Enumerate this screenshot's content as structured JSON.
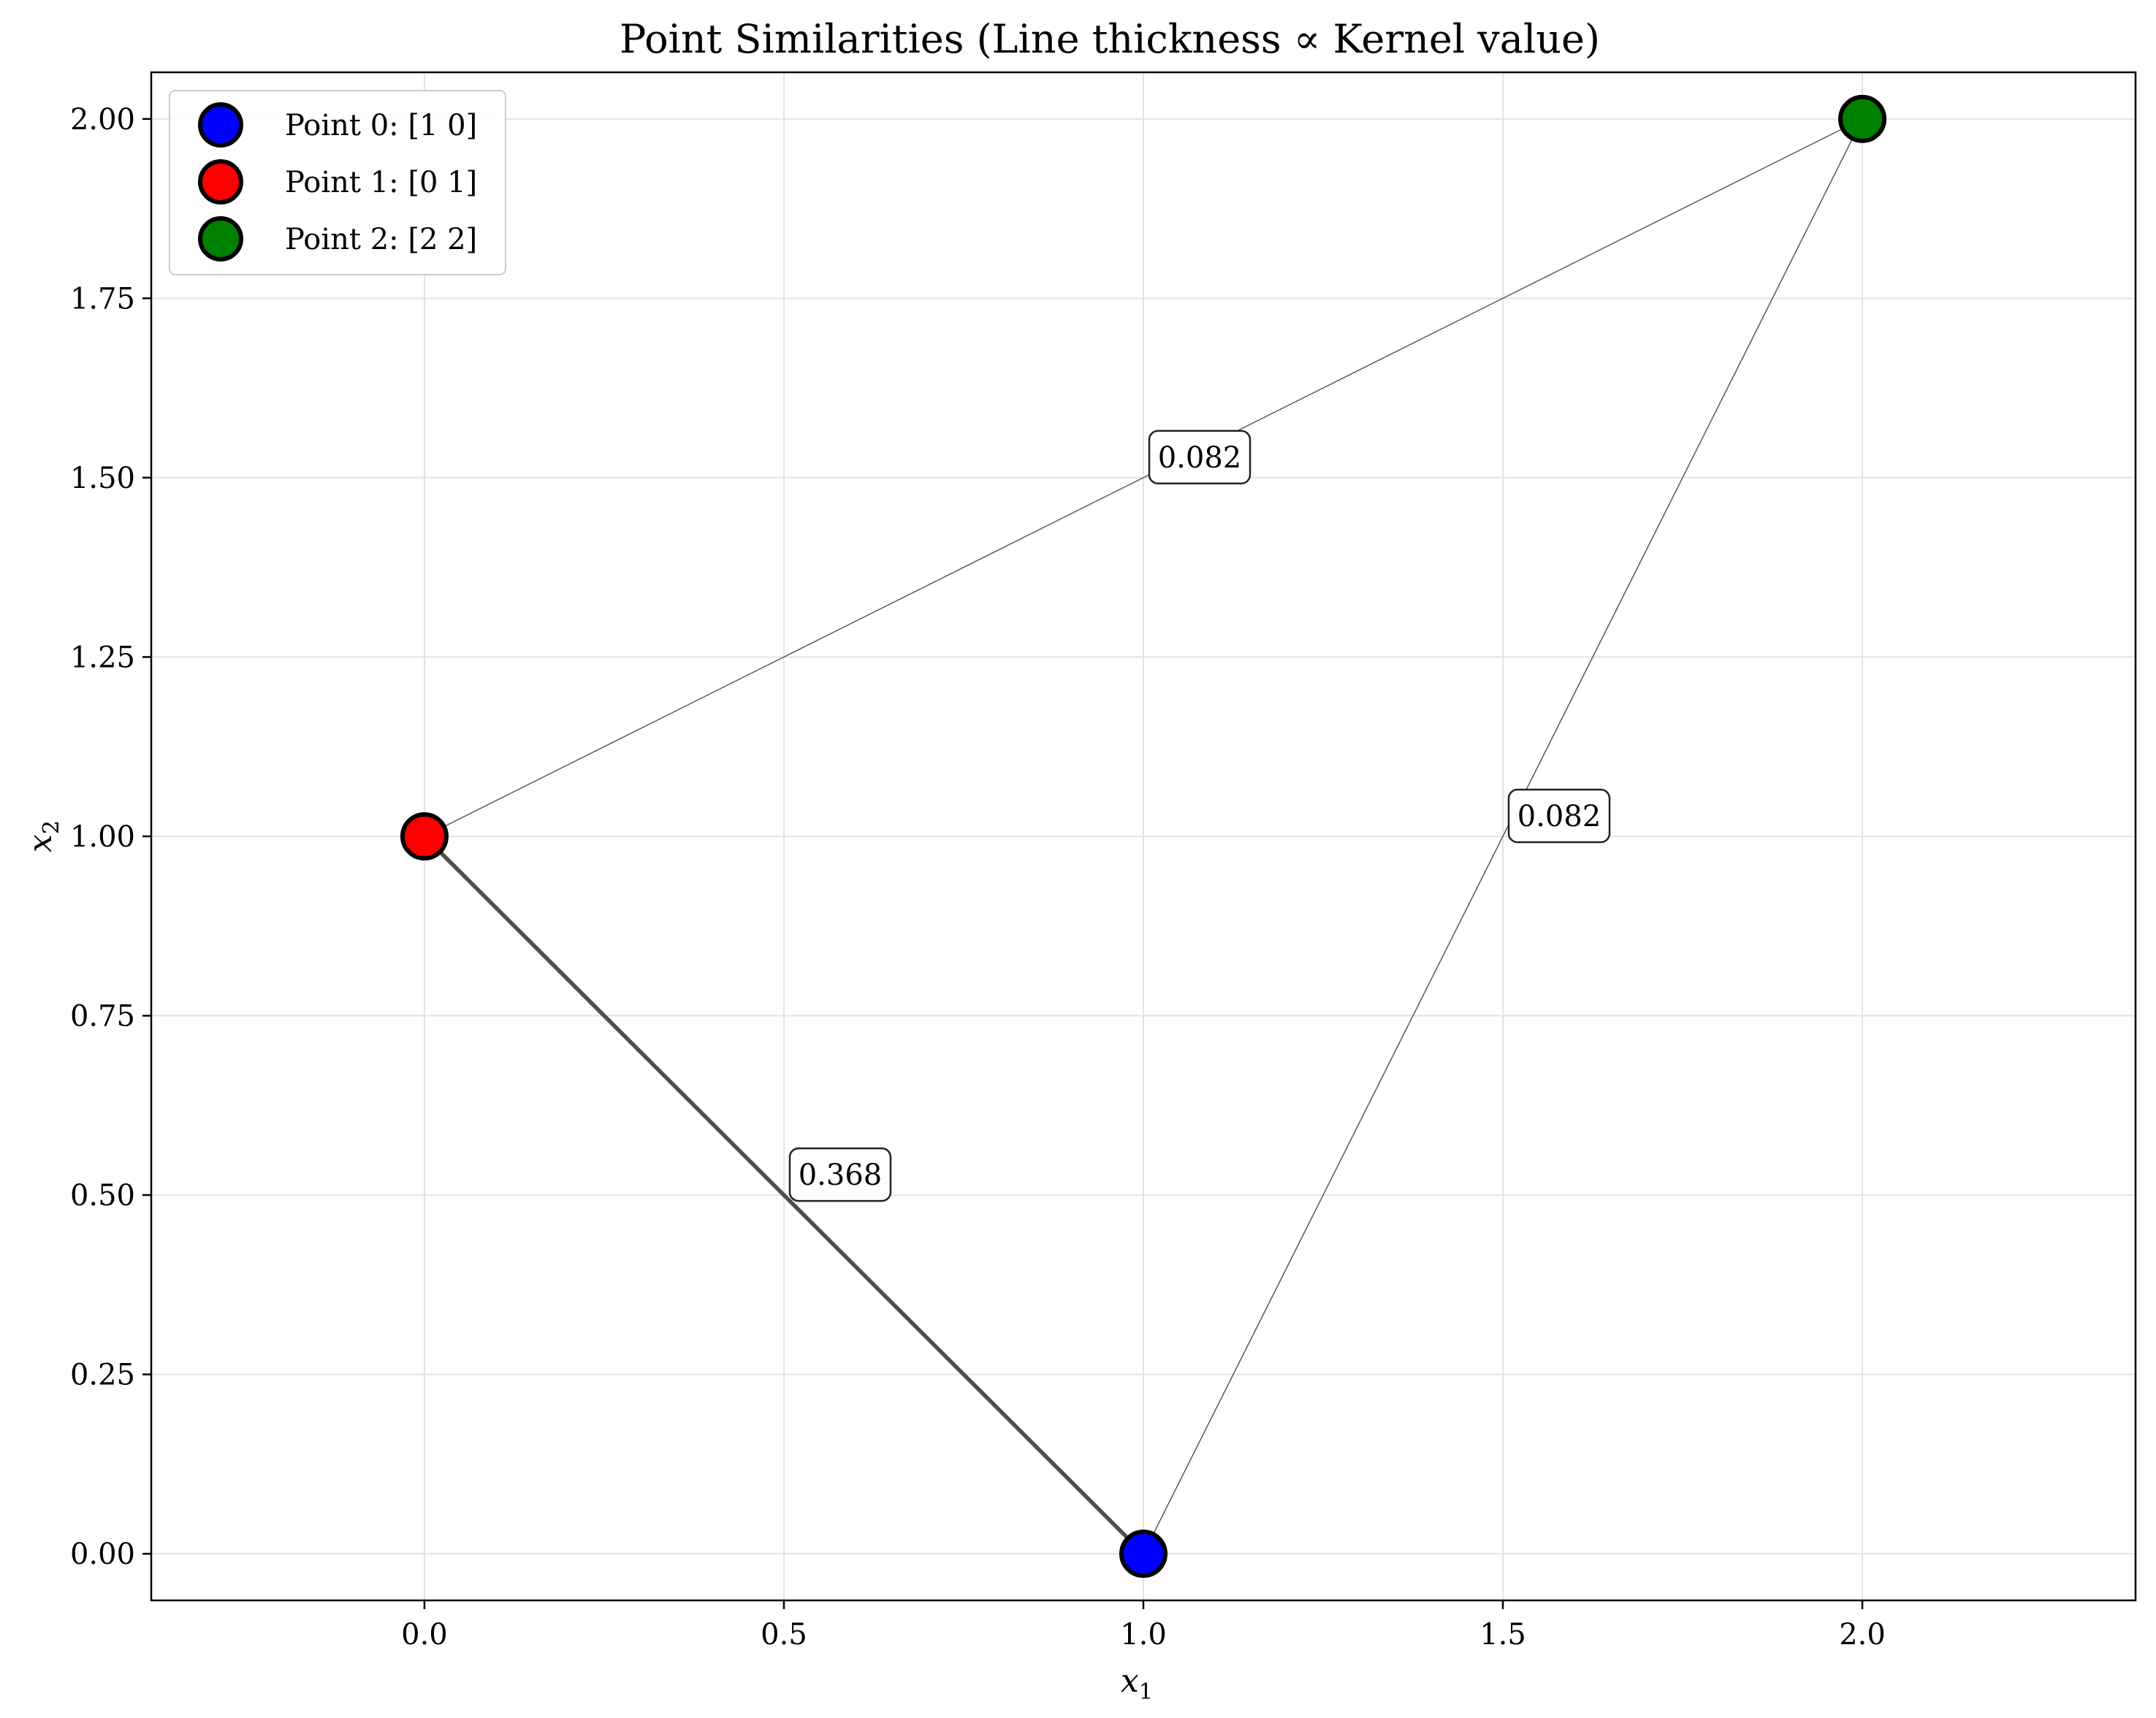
{
  "chart_data": {
    "type": "scatter",
    "title": "Point Similarities (Line thickness ∝ Kernel value)",
    "xlabel": "x",
    "xlabel_sub": "1",
    "ylabel": "x",
    "ylabel_sub": "2",
    "xlim": [
      -0.38,
      2.38
    ],
    "ylim": [
      -0.065,
      2.065
    ],
    "xticks": [
      0.0,
      0.5,
      1.0,
      1.5,
      2.0
    ],
    "xtick_labels": [
      "0.0",
      "0.5",
      "1.0",
      "1.5",
      "2.0"
    ],
    "yticks": [
      0.0,
      0.25,
      0.5,
      0.75,
      1.0,
      1.25,
      1.5,
      1.75,
      2.0
    ],
    "ytick_labels": [
      "0.00",
      "0.25",
      "0.50",
      "0.75",
      "1.00",
      "1.25",
      "1.50",
      "1.75",
      "2.00"
    ],
    "grid": true,
    "legend_position": "top-left",
    "points": [
      {
        "label": "Point 0: [1 0]",
        "x": 1,
        "y": 0,
        "color": "#0000ff"
      },
      {
        "label": "Point 1: [0 1]",
        "x": 0,
        "y": 1,
        "color": "#ff0000"
      },
      {
        "label": "Point 2: [2 2]",
        "x": 2,
        "y": 2,
        "color": "#008000"
      }
    ],
    "edges": [
      {
        "from": 0,
        "to": 1,
        "value": 0.368,
        "label": "0.368"
      },
      {
        "from": 0,
        "to": 2,
        "value": 0.082,
        "label": "0.082"
      },
      {
        "from": 1,
        "to": 2,
        "value": 0.082,
        "label": "0.082"
      }
    ]
  }
}
